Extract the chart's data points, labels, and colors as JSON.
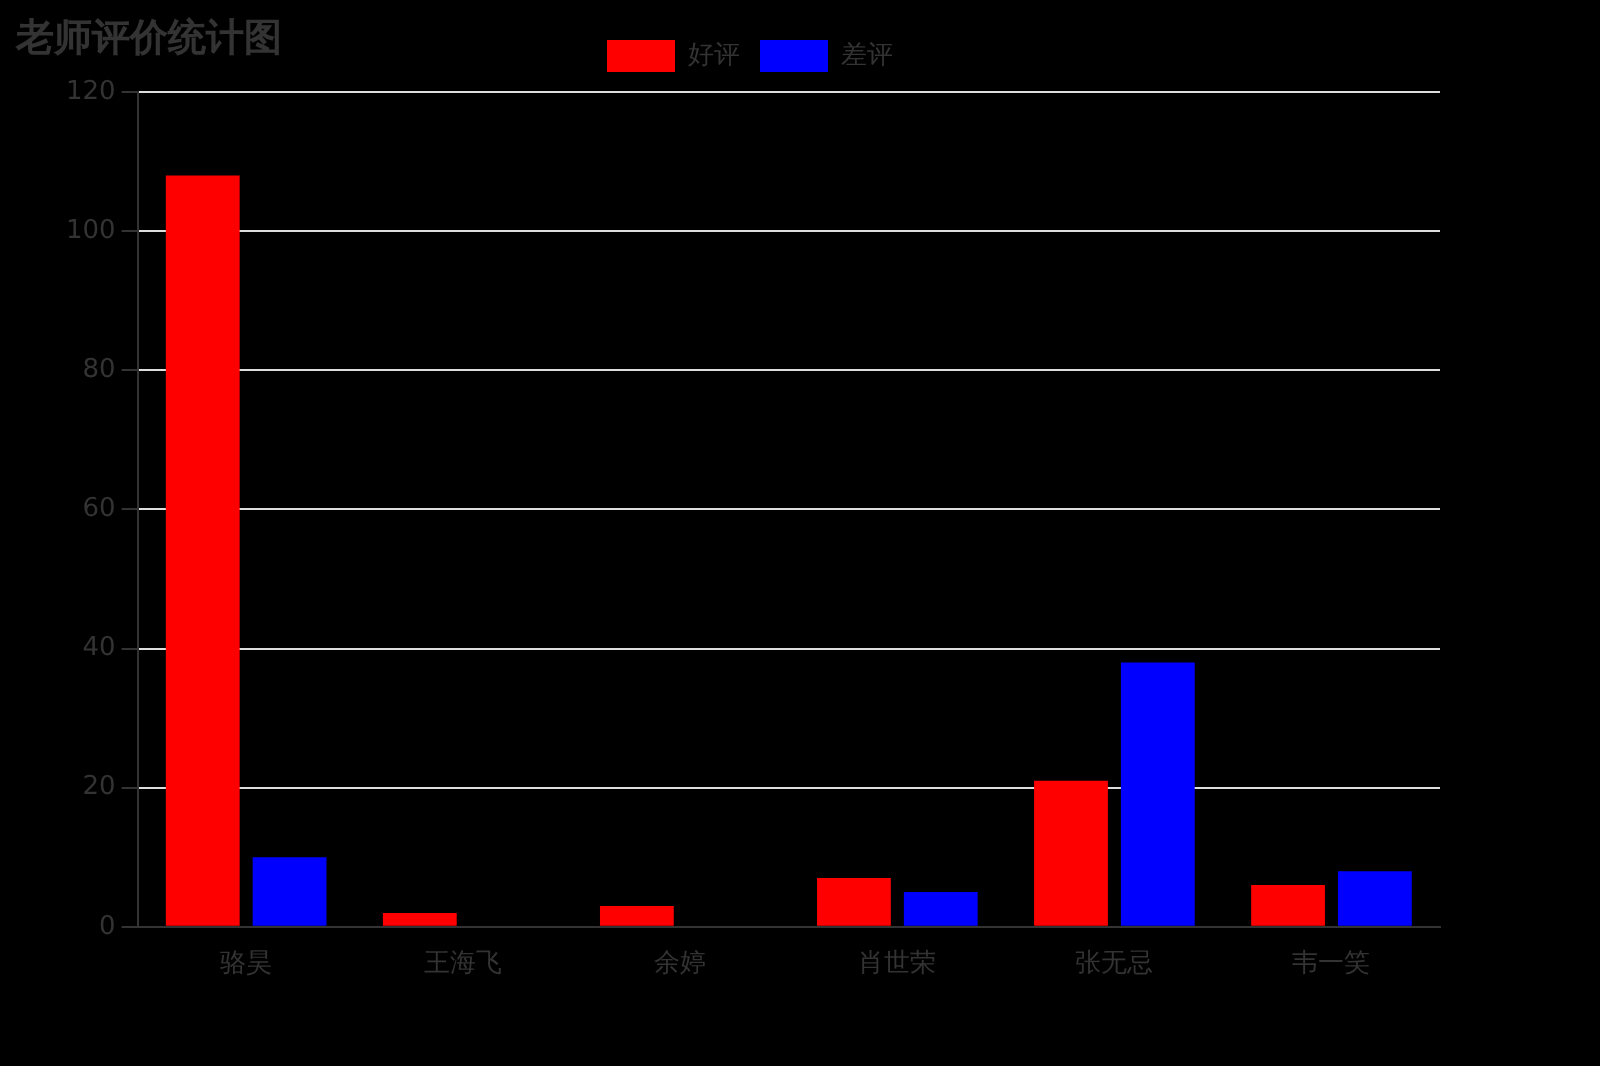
{
  "chart_data": {
    "type": "bar",
    "title": "老师评价统计图",
    "categories": [
      "骆昊",
      "王海飞",
      "余婷",
      "肖世荣",
      "张无忌",
      "韦一笑"
    ],
    "series": [
      {
        "name": "好评",
        "color": "#ff0000",
        "values": [
          108,
          2,
          3,
          7,
          21,
          6
        ]
      },
      {
        "name": "差评",
        "color": "#0000ff",
        "values": [
          10,
          0,
          0,
          5,
          38,
          8
        ]
      }
    ],
    "ylim": [
      0,
      120
    ],
    "yticks": [
      0,
      20,
      40,
      60,
      80,
      100,
      120
    ],
    "grid": "y",
    "legend": "top"
  }
}
